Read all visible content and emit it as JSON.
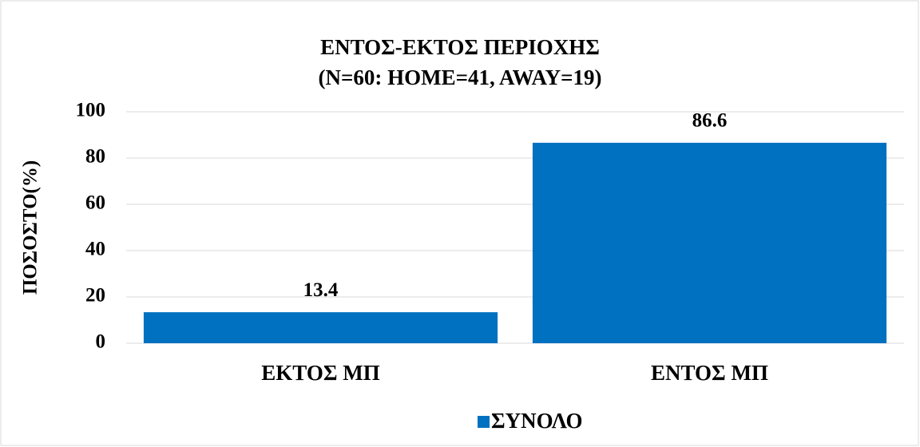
{
  "chart_data": {
    "type": "bar",
    "title": "ΕΝΤΟΣ-ΕΚΤΟΣ ΠΕΡΙΟΧΗΣ",
    "subtitle": "(N=60: HOME=41, AWAY=19)",
    "y_label": "ΠΟΣΟΣΤΟ(%)",
    "categories": [
      "ΕΚΤΟΣ ΜΠ",
      "ΕΝΤΟΣ ΜΠ"
    ],
    "series": [
      {
        "name": "ΣΥΝΟΛΟ",
        "color": "#0070c0",
        "values": [
          13.4,
          86.6
        ]
      }
    ],
    "ylim": [
      0,
      100
    ],
    "yticks": [
      0,
      20,
      40,
      60,
      80,
      100
    ],
    "grid": true,
    "legend": "bottom"
  }
}
